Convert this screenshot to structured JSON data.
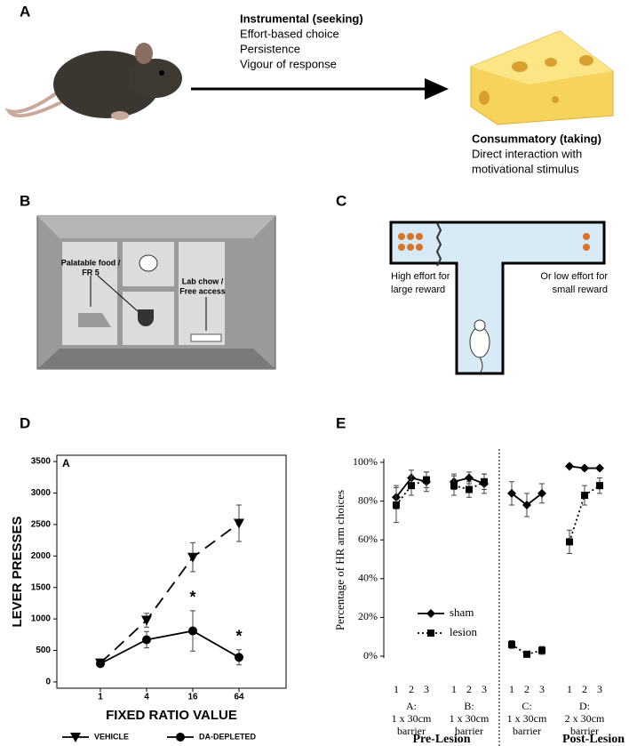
{
  "panels": {
    "a": {
      "label": "A",
      "instrumental": {
        "title": "Instrumental (seeking)",
        "items": [
          "Effort-based choice",
          "Persistence",
          "Vigour of response"
        ]
      },
      "consummatory": {
        "title": "Consummatory (taking)",
        "items": [
          "Direct interaction with",
          "motivational stimulus"
        ]
      }
    },
    "b": {
      "label": "B",
      "left_label": [
        "Palatable food /",
        "FR 5"
      ],
      "right_label": [
        "Lab chow /",
        "Free access"
      ]
    },
    "c": {
      "label": "C",
      "left_label": [
        "High effort for",
        "large reward"
      ],
      "right_label": [
        "Or low effort for",
        "small reward"
      ]
    }
  },
  "chart_data": [
    {
      "panel_label": "D",
      "type": "line",
      "inset_label": "A",
      "categories": [
        "1",
        "4",
        "16",
        "64"
      ],
      "x_label": "FIXED RATIO VALUE",
      "y_label": "LEVER PRESSES",
      "ylim": [
        -100,
        3600
      ],
      "yticks": [
        0,
        500,
        1000,
        1500,
        2000,
        2500,
        3000,
        3500
      ],
      "series": [
        {
          "name": "VEHICLE",
          "color": "#000000",
          "marker": "triangle-down",
          "dashed": true,
          "values": [
            300,
            980,
            1980,
            2520
          ],
          "errors": [
            30,
            110,
            230,
            290
          ]
        },
        {
          "name": "DA-DEPLETED",
          "color": "#000000",
          "marker": "circle",
          "dashed": false,
          "values": [
            290,
            670,
            810,
            390
          ],
          "errors": [
            40,
            130,
            320,
            120
          ]
        }
      ],
      "annotations": [
        {
          "text": "*",
          "category": 2,
          "series": 1
        },
        {
          "text": "*",
          "category": 3,
          "series": 1
        }
      ]
    },
    {
      "panel_label": "E",
      "type": "line",
      "y_label": "Percentage of HR arm choices",
      "ylim": [
        0,
        100
      ],
      "yticks": [
        {
          "value": 0,
          "label": "0%"
        },
        {
          "value": 20,
          "label": "20%"
        },
        {
          "value": 40,
          "label": "40%"
        },
        {
          "value": 60,
          "label": "60%"
        },
        {
          "value": 80,
          "label": "80%"
        },
        {
          "value": 100,
          "label": "100%"
        }
      ],
      "categories": [
        "1",
        "2",
        "3",
        "1",
        "2",
        "3",
        "1",
        "2",
        "3",
        "1",
        "2",
        "3"
      ],
      "groups": [
        [
          "A:",
          "1 x 30cm",
          "barrier"
        ],
        [
          "B:",
          "1 x 30cm",
          "barrier"
        ],
        [
          "C:",
          "1 x 30cm",
          "barrier"
        ],
        [
          "D:",
          "2 x 30cm",
          "barrier"
        ]
      ],
      "phases": [
        "Pre-Lesion",
        "Post-Lesion"
      ],
      "series": [
        {
          "name": "sham",
          "color": "#000000",
          "marker": "diamond",
          "dashed": false,
          "values": [
            82,
            92,
            90,
            90,
            92,
            89,
            84,
            78,
            84,
            98,
            97,
            97
          ],
          "errors": [
            6,
            4,
            5,
            4,
            3,
            5,
            6,
            6,
            5,
            1,
            1,
            1
          ]
        },
        {
          "name": "lesion",
          "color": "#000000",
          "marker": "square",
          "dashed": true,
          "values": [
            78,
            88,
            91,
            88,
            86,
            90,
            6,
            1,
            3,
            59,
            83,
            88
          ],
          "errors": [
            9,
            5,
            4,
            5,
            4,
            4,
            2,
            1,
            2,
            6,
            5,
            4
          ]
        }
      ]
    }
  ]
}
